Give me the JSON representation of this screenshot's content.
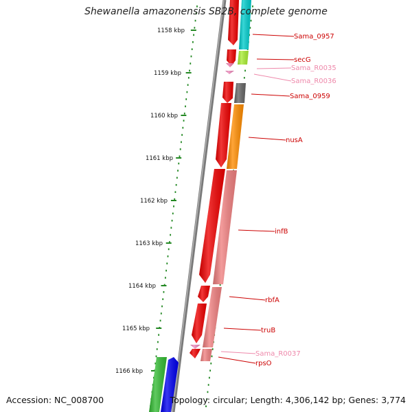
{
  "title": "Shewanella amazonensis SB2B, complete genome",
  "accession": "Accession: NC_008700",
  "topology": "Topology: circular; Length: 4,306,142 bp; Genes: 3,774",
  "ruler": [
    "1158 kbp",
    "1159 kbp",
    "1160 kbp",
    "1161 kbp",
    "1162 kbp",
    "1163 kbp",
    "1164 kbp",
    "1165 kbp",
    "1166 kbp"
  ],
  "colors": {
    "red_gene": "#ee0000",
    "pink_gene": "#ee7b86",
    "rna_label": "#ee88aa",
    "cyan": "#00cccc",
    "lime": "#aaee33",
    "gray": "#666666",
    "orange": "#ff8c00",
    "salmon": "#f08080",
    "green": "#33bb33",
    "blue": "#0000ee",
    "tick_green": "#228822"
  },
  "genes": [
    {
      "name": "Sama_0957",
      "type": "gene"
    },
    {
      "name": "secG",
      "type": "gene"
    },
    {
      "name": "Sama_R0035",
      "type": "rna"
    },
    {
      "name": "Sama_R0036",
      "type": "rna"
    },
    {
      "name": "Sama_0959",
      "type": "gene"
    },
    {
      "name": "nusA",
      "type": "gene"
    },
    {
      "name": "infB",
      "type": "gene"
    },
    {
      "name": "rbfA",
      "type": "gene"
    },
    {
      "name": "truB",
      "type": "gene"
    },
    {
      "name": "Sama_R0037",
      "type": "rna"
    },
    {
      "name": "rpsO",
      "type": "gene"
    }
  ]
}
